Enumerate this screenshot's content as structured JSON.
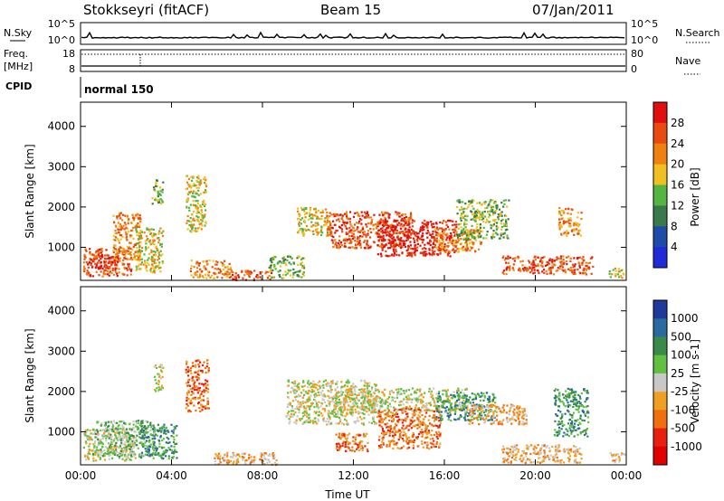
{
  "header": {
    "station": "Stokkseyri (fitACF)",
    "beam": "Beam 15",
    "date": "07/Jan/2011"
  },
  "panels": {
    "nsky_label": "N.Sky",
    "nsearch_label": "N.Search",
    "freq_label_1": "Freq.",
    "freq_label_2": "[MHz]",
    "nave_label": "Nave",
    "cpid_label": "CPID",
    "cpid_value": "normal 150",
    "noise_ticks": [
      "10^5",
      "10^0"
    ],
    "noise_ticks_right": [
      "10^5",
      "10^0"
    ],
    "freq_ticks": [
      "18",
      "8"
    ],
    "nave_ticks": [
      "80",
      "0"
    ]
  },
  "colors": {
    "power": [
      "#1f2bd6",
      "#1e4aa8",
      "#3a7a4a",
      "#55b540",
      "#f0c020",
      "#f08010",
      "#e84a10",
      "#e01010"
    ],
    "velocity": [
      "#1f3a9a",
      "#2a6aa0",
      "#3a8a4a",
      "#60c040",
      "#c8c8c8",
      "#f0a020",
      "#f07010",
      "#e82010",
      "#e00000"
    ],
    "frame": "#000000"
  },
  "chart_data": [
    {
      "type": "heatmap",
      "title": "Power",
      "xlabel": "Time UT",
      "ylabel": "Slant Range [km]",
      "xticks": [
        "00:00",
        "04:00",
        "08:00",
        "12:00",
        "16:00",
        "20:00",
        "00:00"
      ],
      "yticks": [
        "1000",
        "2000",
        "3000",
        "4000"
      ],
      "xlim_hours": [
        0,
        24
      ],
      "ylim_km": [
        180,
        4600
      ],
      "colorbar_label": "Power [dB]",
      "colorbar_ticks": [
        "28",
        "24",
        "20",
        "16",
        "12",
        "8",
        "4"
      ],
      "blobs": [
        {
          "t0": 0.1,
          "t1": 2.2,
          "r0": 300,
          "r1": 1000,
          "level": 6
        },
        {
          "t0": 0.3,
          "t1": 1.6,
          "r0": 500,
          "r1": 800,
          "level": 7
        },
        {
          "t0": 1.4,
          "t1": 2.6,
          "r0": 700,
          "r1": 1900,
          "level": 5
        },
        {
          "t0": 2.4,
          "t1": 3.6,
          "r0": 400,
          "r1": 1500,
          "level": 4
        },
        {
          "t0": 3.1,
          "t1": 3.6,
          "r0": 2100,
          "r1": 2700,
          "level": 3
        },
        {
          "t0": 4.6,
          "t1": 5.5,
          "r0": 1400,
          "r1": 2800,
          "level": 4
        },
        {
          "t0": 4.8,
          "t1": 6.6,
          "r0": 250,
          "r1": 700,
          "level": 5
        },
        {
          "t0": 6.6,
          "t1": 8.4,
          "r0": 200,
          "r1": 450,
          "level": 6
        },
        {
          "t0": 8.2,
          "t1": 9.8,
          "r0": 250,
          "r1": 800,
          "level": 3
        },
        {
          "t0": 9.5,
          "t1": 11.0,
          "r0": 1300,
          "r1": 2000,
          "level": 4
        },
        {
          "t0": 10.8,
          "t1": 14.5,
          "r0": 1000,
          "r1": 1900,
          "level": 6
        },
        {
          "t0": 13.0,
          "t1": 16.5,
          "r0": 800,
          "r1": 1700,
          "level": 7
        },
        {
          "t0": 15.5,
          "t1": 17.6,
          "r0": 900,
          "r1": 1500,
          "level": 5
        },
        {
          "t0": 16.5,
          "t1": 18.8,
          "r0": 1200,
          "r1": 2200,
          "level": 3
        },
        {
          "t0": 18.5,
          "t1": 22.5,
          "r0": 350,
          "r1": 800,
          "level": 6
        },
        {
          "t0": 21.0,
          "t1": 22.0,
          "r0": 1300,
          "r1": 2000,
          "level": 5
        },
        {
          "t0": 23.2,
          "t1": 23.9,
          "r0": 250,
          "r1": 500,
          "level": 4
        }
      ]
    },
    {
      "type": "heatmap",
      "title": "Velocity",
      "xlabel": "Time UT",
      "ylabel": "Slant Range [km]",
      "xticks": [
        "00:00",
        "04:00",
        "08:00",
        "12:00",
        "16:00",
        "20:00",
        "00:00"
      ],
      "yticks": [
        "1000",
        "2000",
        "3000",
        "4000"
      ],
      "xlim_hours": [
        0,
        24
      ],
      "ylim_km": [
        180,
        4600
      ],
      "colorbar_label": "Velocity [m s-1]",
      "colorbar_ticks": [
        "1000",
        "500",
        "100",
        "25",
        "-25",
        "-100",
        "-500",
        "-1000"
      ],
      "blobs": [
        {
          "t0": 0.1,
          "t1": 2.4,
          "r0": 300,
          "r1": 1100,
          "level": 4
        },
        {
          "t0": 0.5,
          "t1": 3.2,
          "r0": 400,
          "r1": 1300,
          "level": 3
        },
        {
          "t0": 2.6,
          "t1": 4.2,
          "r0": 350,
          "r1": 1200,
          "level": 2
        },
        {
          "t0": 3.2,
          "t1": 3.6,
          "r0": 2000,
          "r1": 2700,
          "level": 4
        },
        {
          "t0": 4.6,
          "t1": 5.6,
          "r0": 1500,
          "r1": 2800,
          "level": 6
        },
        {
          "t0": 5.8,
          "t1": 8.6,
          "r0": 200,
          "r1": 500,
          "level": 5
        },
        {
          "t0": 9.0,
          "t1": 13.0,
          "r0": 1200,
          "r1": 2300,
          "level": 4
        },
        {
          "t0": 11.0,
          "t1": 17.0,
          "r0": 1500,
          "r1": 2100,
          "level": 4
        },
        {
          "t0": 11.2,
          "t1": 12.6,
          "r0": 500,
          "r1": 1000,
          "level": 6
        },
        {
          "t0": 13.0,
          "t1": 15.8,
          "r0": 600,
          "r1": 1600,
          "level": 6
        },
        {
          "t0": 15.6,
          "t1": 18.2,
          "r0": 1300,
          "r1": 2000,
          "level": 2
        },
        {
          "t0": 17.0,
          "t1": 19.6,
          "r0": 1200,
          "r1": 1700,
          "level": 5
        },
        {
          "t0": 18.5,
          "t1": 22.0,
          "r0": 250,
          "r1": 700,
          "level": 5
        },
        {
          "t0": 20.8,
          "t1": 22.3,
          "r0": 900,
          "r1": 2100,
          "level": 2
        },
        {
          "t0": 23.2,
          "t1": 23.9,
          "r0": 250,
          "r1": 500,
          "level": 5
        }
      ]
    }
  ]
}
